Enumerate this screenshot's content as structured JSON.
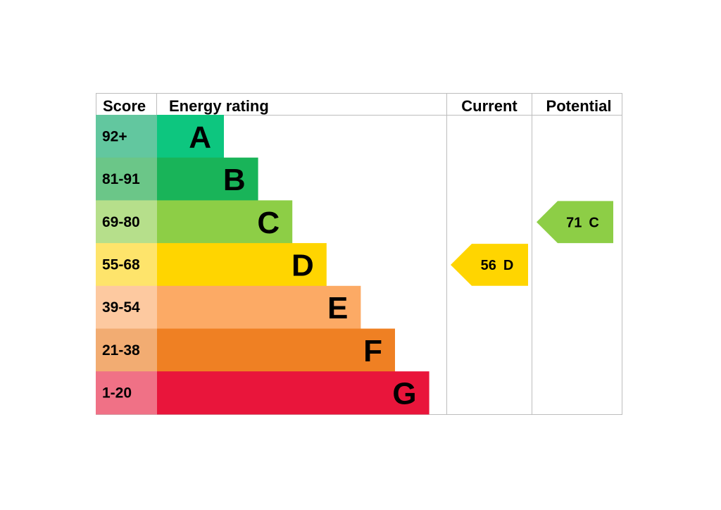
{
  "headers": {
    "score": "Score",
    "energy_rating": "Energy rating",
    "current": "Current",
    "potential": "Potential"
  },
  "chart_data": {
    "type": "bar",
    "categories": [
      "A",
      "B",
      "C",
      "D",
      "E",
      "F",
      "G"
    ],
    "bands": [
      {
        "letter": "A",
        "range": "92+",
        "band_color": "#0dc67f",
        "score_color": "#62c79f"
      },
      {
        "letter": "B",
        "range": "81-91",
        "band_color": "#19b459",
        "score_color": "#6bc688"
      },
      {
        "letter": "C",
        "range": "69-80",
        "band_color": "#8dce46",
        "score_color": "#b6df8b"
      },
      {
        "letter": "D",
        "range": "55-68",
        "band_color": "#ffd500",
        "score_color": "#fee46b"
      },
      {
        "letter": "E",
        "range": "39-54",
        "band_color": "#fcaa65",
        "score_color": "#fdc9a0"
      },
      {
        "letter": "F",
        "range": "21-38",
        "band_color": "#ef8023",
        "score_color": "#f2ac72"
      },
      {
        "letter": "G",
        "range": "1-20",
        "band_color": "#e9153b",
        "score_color": "#f07186"
      }
    ],
    "current": {
      "score": 56,
      "rating": "D",
      "color": "#ffd500"
    },
    "potential": {
      "score": 71,
      "rating": "C",
      "color": "#8dce46"
    },
    "grid": false
  }
}
